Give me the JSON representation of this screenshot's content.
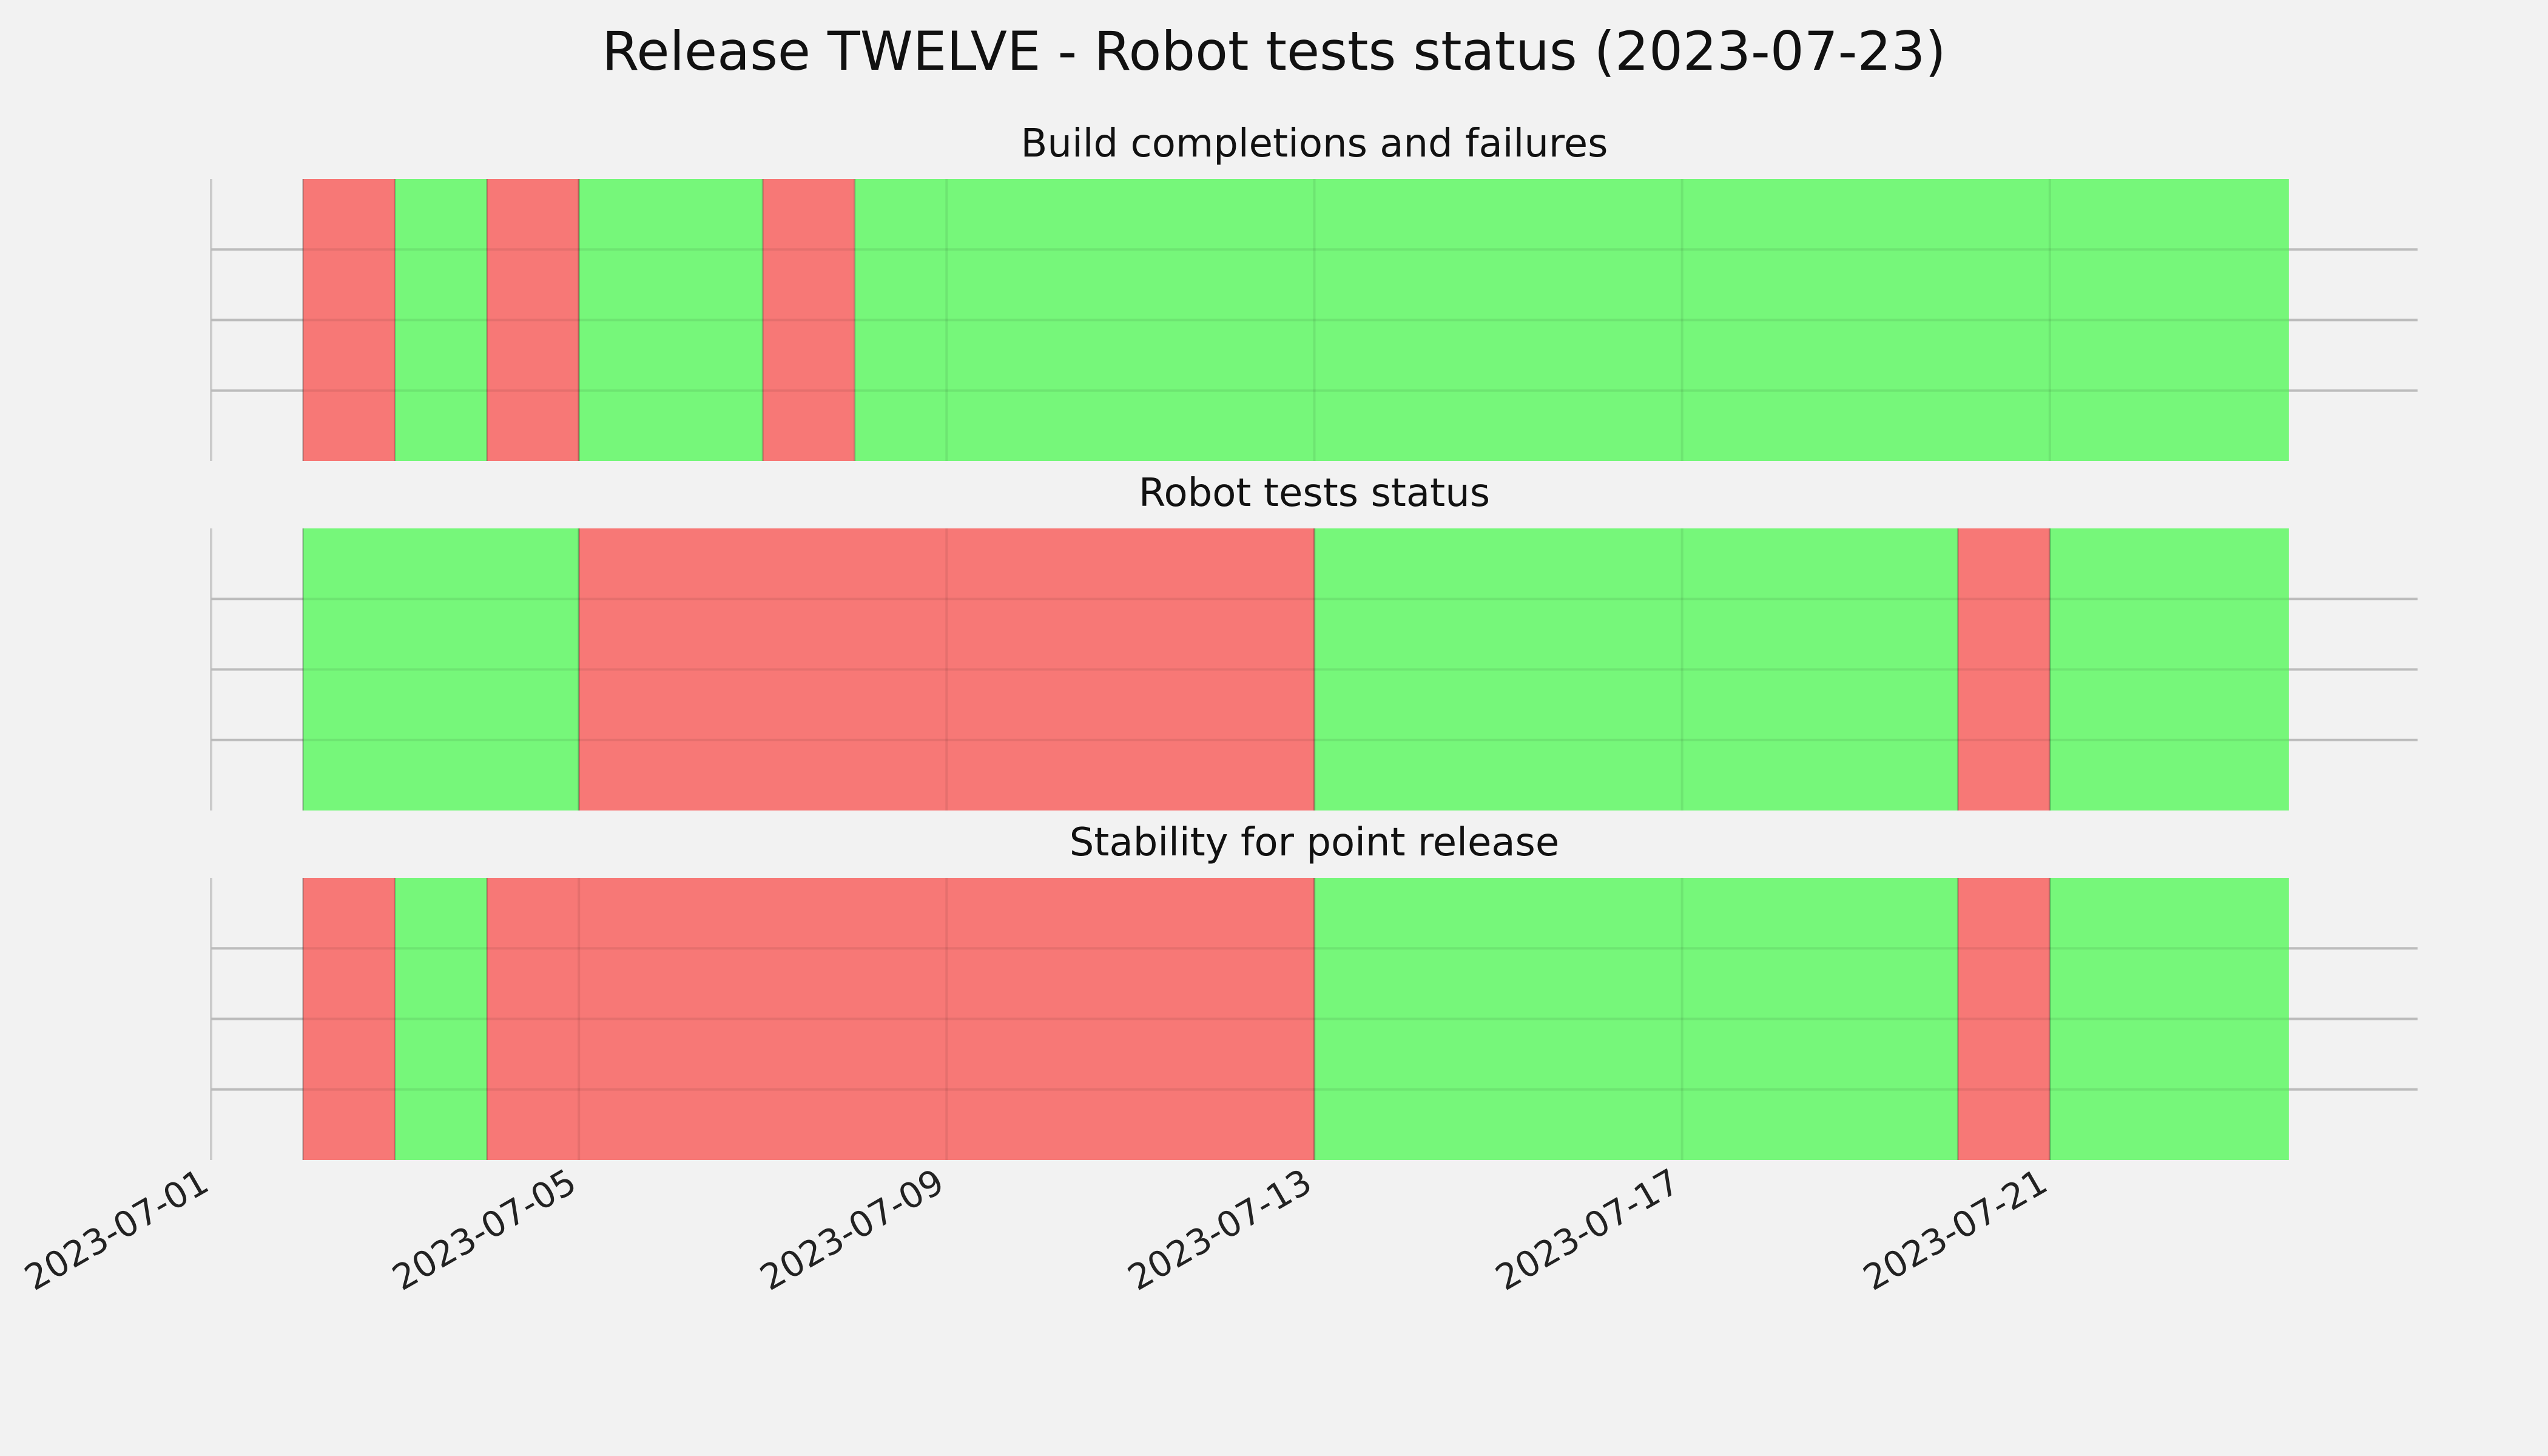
{
  "title": "Release TWELVE - Robot tests status (2023-07-23)",
  "colors": {
    "background": "#f2f2f2",
    "pass": "#76f77a",
    "fail": "#f77876",
    "grid": "#cbcbcb",
    "vertical_grid_on_bars": "#5fd85f"
  },
  "chart_data": [
    {
      "type": "bar",
      "title": "Build completions and failures",
      "xlim": [
        "2023-07-01",
        "2023-07-25"
      ],
      "grid": true,
      "segments": [
        {
          "start": "2023-07-02",
          "end": "2023-07-03",
          "status": "fail"
        },
        {
          "start": "2023-07-03",
          "end": "2023-07-04",
          "status": "pass"
        },
        {
          "start": "2023-07-04",
          "end": "2023-07-05",
          "status": "fail"
        },
        {
          "start": "2023-07-05",
          "end": "2023-07-07",
          "status": "pass"
        },
        {
          "start": "2023-07-07",
          "end": "2023-07-08",
          "status": "fail"
        },
        {
          "start": "2023-07-08",
          "end": "2023-07-23.6",
          "status": "pass"
        }
      ]
    },
    {
      "type": "bar",
      "title": "Robot tests status",
      "xlim": [
        "2023-07-01",
        "2023-07-25"
      ],
      "grid": true,
      "segments": [
        {
          "start": "2023-07-02",
          "end": "2023-07-05",
          "status": "pass"
        },
        {
          "start": "2023-07-05",
          "end": "2023-07-13",
          "status": "fail"
        },
        {
          "start": "2023-07-13",
          "end": "2023-07-20",
          "status": "pass"
        },
        {
          "start": "2023-07-20",
          "end": "2023-07-21",
          "status": "fail"
        },
        {
          "start": "2023-07-21",
          "end": "2023-07-23.6",
          "status": "pass"
        }
      ]
    },
    {
      "type": "bar",
      "title": "Stability for point release",
      "xlim": [
        "2023-07-01",
        "2023-07-25"
      ],
      "grid": true,
      "segments": [
        {
          "start": "2023-07-02",
          "end": "2023-07-03",
          "status": "fail"
        },
        {
          "start": "2023-07-03",
          "end": "2023-07-04",
          "status": "pass"
        },
        {
          "start": "2023-07-04",
          "end": "2023-07-13",
          "status": "fail"
        },
        {
          "start": "2023-07-13",
          "end": "2023-07-20",
          "status": "pass"
        },
        {
          "start": "2023-07-20",
          "end": "2023-07-21",
          "status": "fail"
        },
        {
          "start": "2023-07-21",
          "end": "2023-07-23.6",
          "status": "pass"
        }
      ]
    }
  ],
  "x_ticks": [
    "2023-07-01",
    "2023-07-05",
    "2023-07-09",
    "2023-07-13",
    "2023-07-17",
    "2023-07-21"
  ]
}
